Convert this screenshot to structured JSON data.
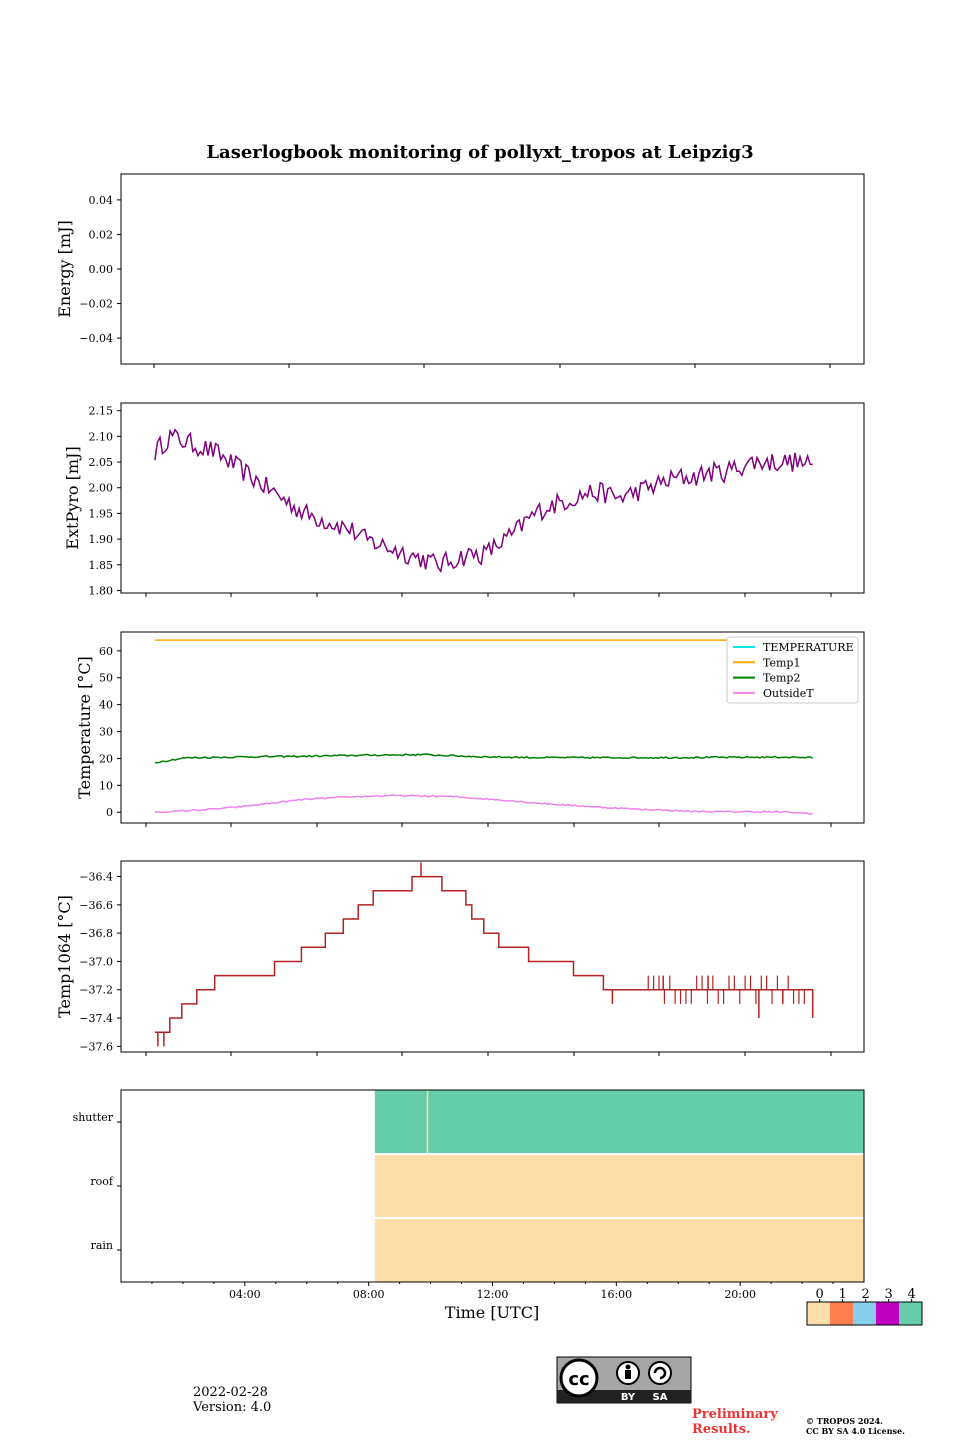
{
  "title": "Laserlogbook monitoring of pollyxt_tropos at Leipzig3",
  "chart_data": [
    {
      "id": "energy",
      "type": "line",
      "ylabel": "Energy [mJ]",
      "ylim": [
        -0.055,
        0.055
      ],
      "yticks": [
        0.04,
        0.02,
        0.0,
        -0.02,
        -0.04
      ],
      "ytick_labels": [
        "0.04",
        "0.02",
        "0.00",
        "−0.02",
        "−0.04"
      ],
      "series": []
    },
    {
      "id": "extpyro",
      "type": "line",
      "ylabel": "ExtPyro [mJ]",
      "xlim": [
        0,
        24
      ],
      "ylim": [
        1.795,
        2.165
      ],
      "yticks": [
        2.15,
        2.1,
        2.05,
        2.0,
        1.95,
        1.9,
        1.85,
        1.8
      ],
      "ytick_labels": [
        "2.15",
        "2.10",
        "2.05",
        "2.00",
        "1.95",
        "1.90",
        "1.85",
        "1.80"
      ],
      "series": [
        {
          "name": "ExtPyro",
          "color": "#800080",
          "x": [
            1.0,
            1.5,
            2.0,
            2.5,
            3.0,
            3.5,
            4.0,
            4.5,
            5.0,
            5.5,
            6.0,
            6.5,
            7.0,
            7.5,
            8.0,
            8.5,
            9.0,
            9.5,
            10.0,
            10.5,
            11.0,
            11.5,
            12.0,
            12.5,
            13.0,
            13.5,
            14.0,
            14.5,
            15.0,
            15.5,
            16.0,
            16.5,
            17.0,
            17.5,
            18.0,
            18.5,
            19.0,
            19.5,
            20.0,
            20.5,
            21.0,
            21.5,
            22.0,
            22.5,
            23.0
          ],
          "y": [
            2.07,
            2.1,
            2.09,
            2.08,
            2.07,
            2.05,
            2.03,
            2.01,
            1.99,
            1.97,
            1.95,
            1.94,
            1.93,
            1.92,
            1.9,
            1.89,
            1.88,
            1.87,
            1.86,
            1.85,
            1.86,
            1.87,
            1.87,
            1.89,
            1.91,
            1.94,
            1.96,
            1.97,
            1.98,
            1.99,
            1.99,
            1.98,
            1.99,
            2.0,
            2.01,
            2.02,
            2.02,
            2.03,
            2.03,
            2.04,
            2.05,
            2.05,
            2.05,
            2.05,
            2.04
          ],
          "noise": 0.02
        }
      ]
    },
    {
      "id": "temperature",
      "type": "line",
      "ylabel": "Temperature [°C]",
      "xlim": [
        0,
        24
      ],
      "ylim": [
        -4,
        67
      ],
      "yticks": [
        60,
        50,
        40,
        30,
        20,
        10,
        0
      ],
      "ytick_labels": [
        "60",
        "50",
        "40",
        "30",
        "20",
        "10",
        "0"
      ],
      "legend_location": "top-right",
      "series": [
        {
          "name": "TEMPERATURE",
          "color": "#00e5ee",
          "x": [],
          "y": []
        },
        {
          "name": "Temp1",
          "color": "#ffa500",
          "x": [
            1.0,
            23.0
          ],
          "y": [
            64,
            64
          ]
        },
        {
          "name": "Temp2",
          "color": "#008000",
          "x": [
            1.0,
            2.0,
            4.0,
            6.0,
            8.0,
            10.0,
            12.0,
            14.0,
            16.0,
            18.0,
            20.0,
            22.0,
            23.0
          ],
          "y": [
            18.5,
            20.2,
            20.6,
            20.8,
            21.2,
            21.4,
            20.6,
            20.3,
            20.3,
            20.3,
            20.4,
            20.5,
            20.3
          ],
          "noise": 0.3
        },
        {
          "name": "OutsideT",
          "color": "#ee82ee",
          "x": [
            1.0,
            2.0,
            3.0,
            4.0,
            5.0,
            6.0,
            7.0,
            8.0,
            9.0,
            10.0,
            11.0,
            12.0,
            13.0,
            14.0,
            15.0,
            16.0,
            17.0,
            18.0,
            19.0,
            20.0,
            21.0,
            22.0,
            23.0
          ],
          "y": [
            0.0,
            0.5,
            1.2,
            2.2,
            3.5,
            4.8,
            5.4,
            5.9,
            6.2,
            6.0,
            5.8,
            5.0,
            4.2,
            3.2,
            2.5,
            1.8,
            1.2,
            0.8,
            0.3,
            0.2,
            0.2,
            0.1,
            -0.5
          ],
          "noise": 0.25
        }
      ]
    },
    {
      "id": "temp1064",
      "type": "line",
      "ylabel": "Temp1064 [°C]",
      "xlim": [
        0,
        24
      ],
      "ylim": [
        -37.64,
        -36.29
      ],
      "yticks": [
        -36.4,
        -36.6,
        -36.8,
        -37.0,
        -37.2,
        -37.4,
        -37.6
      ],
      "ytick_labels": [
        "−36.4",
        "−36.6",
        "−36.8",
        "−37.0",
        "−37.2",
        "−37.4",
        "−37.6"
      ],
      "series": [
        {
          "name": "Temp1064",
          "color": "#b22222",
          "steps": [
            [
              1.0,
              -37.5
            ],
            [
              1.5,
              -37.4
            ],
            [
              1.9,
              -37.3
            ],
            [
              2.4,
              -37.2
            ],
            [
              3.0,
              -37.1
            ],
            [
              5.0,
              -37.0
            ],
            [
              5.9,
              -36.9
            ],
            [
              6.7,
              -36.8
            ],
            [
              7.3,
              -36.7
            ],
            [
              7.8,
              -36.6
            ],
            [
              8.3,
              -36.5
            ],
            [
              9.6,
              -36.4
            ],
            [
              10.6,
              -36.5
            ],
            [
              11.4,
              -36.6
            ],
            [
              11.6,
              -36.7
            ],
            [
              12.0,
              -36.8
            ],
            [
              12.5,
              -36.9
            ],
            [
              13.5,
              -37.0
            ],
            [
              15.0,
              -37.1
            ],
            [
              16.0,
              -37.2
            ],
            [
              23.0,
              -37.4
            ]
          ],
          "spikes": [
            [
              1.1,
              -37.6
            ],
            [
              1.3,
              -37.6
            ],
            [
              9.9,
              -36.3
            ],
            [
              16.3,
              -37.3
            ],
            [
              18.0,
              -37.1
            ],
            [
              19.5,
              -37.1
            ],
            [
              21.2,
              -37.4
            ],
            [
              22.0,
              -37.3
            ]
          ]
        }
      ]
    },
    {
      "id": "flags",
      "type": "heatmap",
      "xlabel": "Time [UTC]",
      "xlim": [
        0,
        24
      ],
      "xtick_labels": [
        "04:00",
        "08:00",
        "12:00",
        "16:00",
        "20:00"
      ],
      "xticks": [
        4,
        8,
        12,
        16,
        20
      ],
      "rows": [
        "shutter",
        "roof",
        "rain"
      ],
      "segments": [
        {
          "row": "shutter",
          "start": 8.2,
          "end": 24,
          "value": 4
        },
        {
          "row": "roof",
          "start": 8.2,
          "end": 24,
          "value": 0
        },
        {
          "row": "rain",
          "start": 8.2,
          "end": 24,
          "value": 0
        }
      ],
      "gap_marker": {
        "row": "shutter",
        "x": 9.9
      },
      "colorbar": {
        "labels": [
          "0",
          "1",
          "2",
          "3",
          "4"
        ],
        "colors": [
          "#fddeab",
          "#ff7f50",
          "#87ceeb",
          "#c000c0",
          "#66cdaa"
        ]
      }
    }
  ],
  "footer": {
    "date": "2022-02-28",
    "version": "Version: 4.0",
    "preliminary_line1": "Preliminary",
    "preliminary_line2": "Results.",
    "license_line1": "© TROPOS 2024.",
    "license_line2": "CC BY SA 4.0 License.",
    "cc_by": "BY",
    "cc_sa": "SA",
    "cc_logo": "cc"
  },
  "colors": {
    "preliminary": "#ee3333",
    "cc_badge_bg": "#a6a6a6",
    "cc_badge_dark": "#222222"
  }
}
